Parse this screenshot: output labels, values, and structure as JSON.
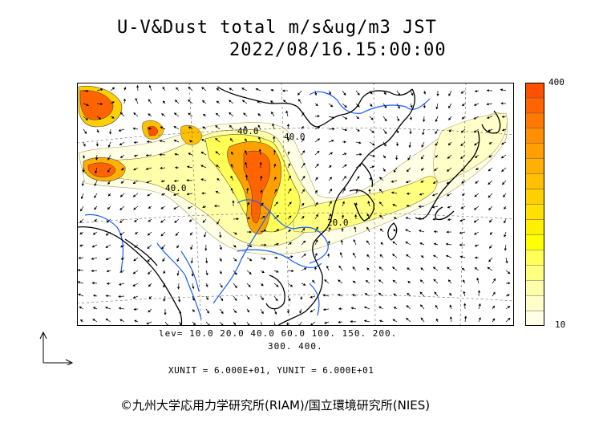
{
  "header": {
    "title": "U-V&Dust total m/s&ug/m3 JST",
    "timestamp": "2022/08/16.15:00:00"
  },
  "legend": {
    "max_label": "400",
    "min_label": "10",
    "colors": [
      "#ffffe6",
      "#ffffc8",
      "#ffffaa",
      "#ffff80",
      "#ffff55",
      "#ffff00",
      "#fff000",
      "#ffe000",
      "#ffd000",
      "#ffc000",
      "#ffb000",
      "#ff9f00",
      "#ff8f00",
      "#ff7800",
      "#ff6400",
      "#ff5000"
    ]
  },
  "contours": {
    "levels_line1": "lev= 10.0 20.0 40.0 60.0 100. 150. 200.",
    "levels_line2": "300. 400.",
    "map_labels": [
      "40.0",
      "40.0",
      "40.0",
      "20.0"
    ]
  },
  "footer": {
    "units": "XUNIT = 6.000E+01, YUNIT = 6.000E+01",
    "copyright": "©九州大学応用力学研究所(RIAM)/国立環境研究所(NIES)"
  }
}
